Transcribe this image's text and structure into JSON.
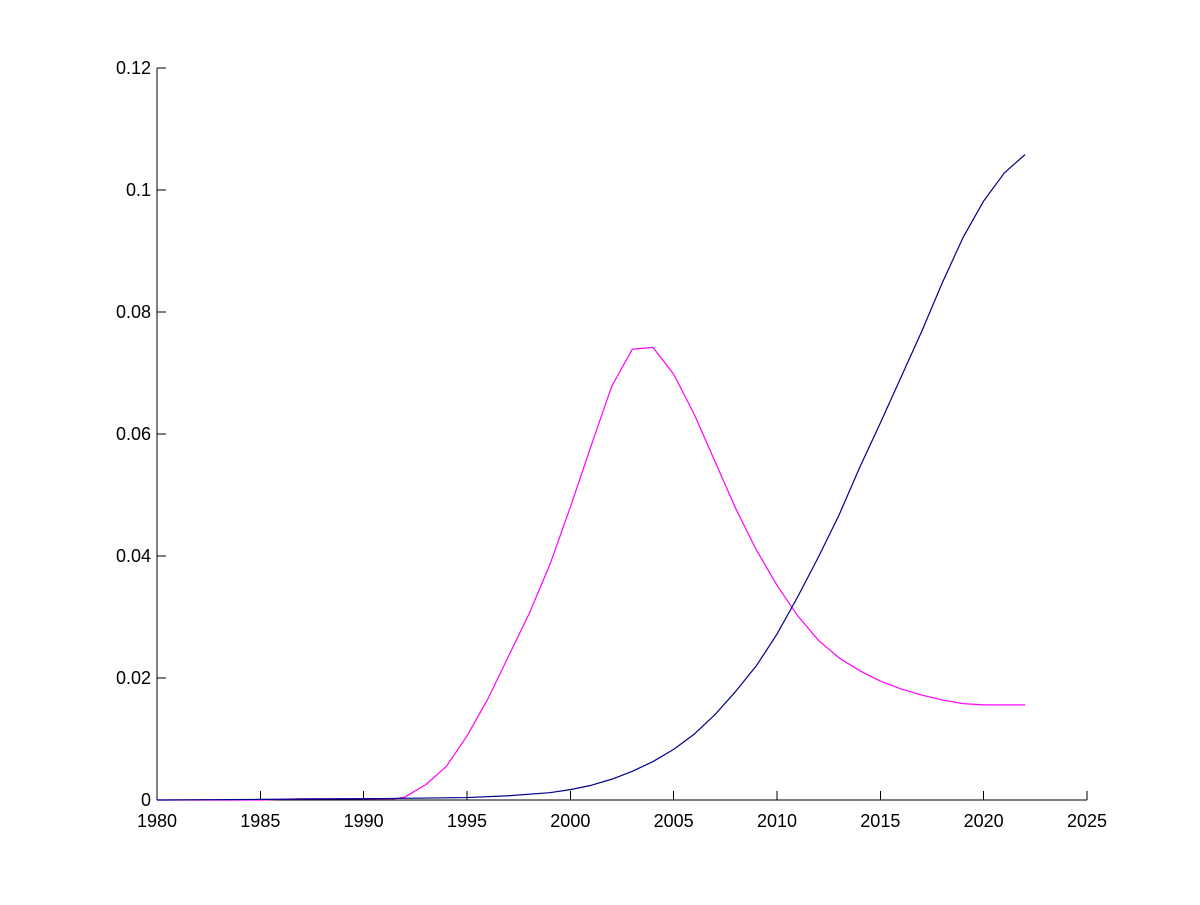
{
  "chart_data": {
    "type": "line",
    "title": "",
    "xlabel": "",
    "ylabel": "",
    "xlim": [
      1980,
      2025
    ],
    "ylim": [
      0,
      0.12
    ],
    "grid": false,
    "legend": "none",
    "x_ticks": [
      1980,
      1985,
      1990,
      1995,
      2000,
      2005,
      2010,
      2015,
      2020,
      2025
    ],
    "x_tick_labels": [
      "1980",
      "1985",
      "1990",
      "1995",
      "2000",
      "2005",
      "2010",
      "2015",
      "2020",
      "2025"
    ],
    "y_ticks": [
      0,
      0.02,
      0.04,
      0.06,
      0.08,
      0.1,
      0.12
    ],
    "y_tick_labels": [
      "0",
      "0.02",
      "0.04",
      "0.06",
      "0.08",
      "0.1",
      "0.12"
    ],
    "series": [
      {
        "color": "#ff00ff",
        "x": [
          1980,
          1985,
          1987,
          1990,
          1991.5,
          1992,
          1993,
          1994,
          1995,
          1996,
          1997,
          1998,
          1999,
          2000,
          2001,
          2002,
          2003,
          2004,
          2005,
          2006,
          2007,
          2008,
          2009,
          2010,
          2011,
          2012,
          2013,
          2014,
          2015,
          2016,
          2017,
          2018,
          2019,
          2020,
          2021,
          2022
        ],
        "y": [
          0,
          0,
          0.0002,
          0.0002,
          0.0002,
          0.0005,
          0.0025,
          0.0055,
          0.0105,
          0.0165,
          0.0235,
          0.0305,
          0.0385,
          0.048,
          0.058,
          0.0678,
          0.0739,
          0.0742,
          0.0698,
          0.0632,
          0.0555,
          0.0478,
          0.041,
          0.0352,
          0.0302,
          0.0262,
          0.0233,
          0.0212,
          0.0195,
          0.0182,
          0.0172,
          0.0164,
          0.0158,
          0.0156,
          0.0156,
          0.0156
        ]
      },
      {
        "color": "#00008b",
        "x": [
          1980,
          1985,
          1990,
          1995,
          1997,
          1999,
          2000,
          2001,
          2002,
          2003,
          2004,
          2005,
          2006,
          2007,
          2008,
          2009,
          2010,
          2011,
          2012,
          2013,
          2014,
          2015,
          2016,
          2017,
          2018,
          2019,
          2020,
          2021,
          2022
        ],
        "y": [
          0,
          0.0001,
          0.0002,
          0.0004,
          0.0007,
          0.0012,
          0.0017,
          0.0024,
          0.0034,
          0.0047,
          0.0063,
          0.0083,
          0.0108,
          0.014,
          0.0178,
          0.022,
          0.0272,
          0.0333,
          0.0398,
          0.0467,
          0.0545,
          0.0618,
          0.0693,
          0.0768,
          0.0848,
          0.0922,
          0.0982,
          0.1028,
          0.1058
        ]
      }
    ]
  }
}
